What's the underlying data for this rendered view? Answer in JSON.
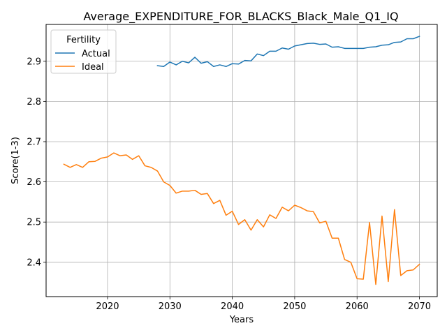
{
  "chart_data": {
    "type": "line",
    "title": "Average_EXPENDITURE_FOR_BLACKS_Black_Male_Q1_IQ",
    "xlabel": "Years",
    "ylabel": "Score(1-3)",
    "xlim": [
      2010.15,
      2072.85
    ],
    "ylim": [
      2.3146,
      2.9916
    ],
    "xticks": [
      2020,
      2030,
      2040,
      2050,
      2060,
      2070
    ],
    "yticks": [
      2.4,
      2.5,
      2.6,
      2.7,
      2.8,
      2.9
    ],
    "grid": true,
    "legend": {
      "title": "Fertility",
      "placement": "top-left"
    },
    "series": [
      {
        "name": "Actual",
        "color": "#1f77b4",
        "x": [
          2028,
          2029,
          2030,
          2031,
          2032,
          2033,
          2034,
          2035,
          2036,
          2037,
          2038,
          2039,
          2040,
          2041,
          2042,
          2043,
          2044,
          2045,
          2046,
          2047,
          2048,
          2049,
          2050,
          2051,
          2052,
          2053,
          2054,
          2055,
          2056,
          2057,
          2058,
          2059,
          2060,
          2061,
          2062,
          2063,
          2064,
          2065,
          2066,
          2067,
          2068,
          2069,
          2070
        ],
        "values": [
          2.889,
          2.887,
          2.898,
          2.891,
          2.9,
          2.896,
          2.91,
          2.895,
          2.899,
          2.887,
          2.891,
          2.887,
          2.894,
          2.893,
          2.902,
          2.901,
          2.918,
          2.914,
          2.925,
          2.925,
          2.933,
          2.93,
          2.938,
          2.941,
          2.944,
          2.945,
          2.942,
          2.943,
          2.935,
          2.936,
          2.932,
          2.932,
          2.932,
          2.932,
          2.935,
          2.936,
          2.94,
          2.941,
          2.947,
          2.948,
          2.956,
          2.956,
          2.962
        ]
      },
      {
        "name": "Ideal",
        "color": "#ff7f0e",
        "x": [
          2013,
          2014,
          2015,
          2016,
          2017,
          2018,
          2019,
          2020,
          2021,
          2022,
          2023,
          2024,
          2025,
          2026,
          2027,
          2028,
          2029,
          2030,
          2031,
          2032,
          2033,
          2034,
          2035,
          2036,
          2037,
          2038,
          2039,
          2040,
          2041,
          2042,
          2043,
          2044,
          2045,
          2046,
          2047,
          2048,
          2049,
          2050,
          2051,
          2052,
          2053,
          2054,
          2055,
          2056,
          2057,
          2058,
          2059,
          2060,
          2061,
          2062,
          2063,
          2064,
          2065,
          2066,
          2067,
          2068,
          2069,
          2070
        ],
        "values": [
          2.644,
          2.636,
          2.643,
          2.636,
          2.65,
          2.651,
          2.659,
          2.662,
          2.672,
          2.665,
          2.667,
          2.656,
          2.665,
          2.64,
          2.636,
          2.627,
          2.6,
          2.591,
          2.572,
          2.577,
          2.577,
          2.579,
          2.569,
          2.571,
          2.546,
          2.554,
          2.517,
          2.527,
          2.494,
          2.506,
          2.48,
          2.506,
          2.488,
          2.518,
          2.509,
          2.537,
          2.528,
          2.542,
          2.536,
          2.528,
          2.526,
          2.498,
          2.502,
          2.46,
          2.46,
          2.407,
          2.4,
          2.359,
          2.358,
          2.499,
          2.345,
          2.515,
          2.352,
          2.531,
          2.367,
          2.379,
          2.381,
          2.395
        ]
      }
    ]
  }
}
